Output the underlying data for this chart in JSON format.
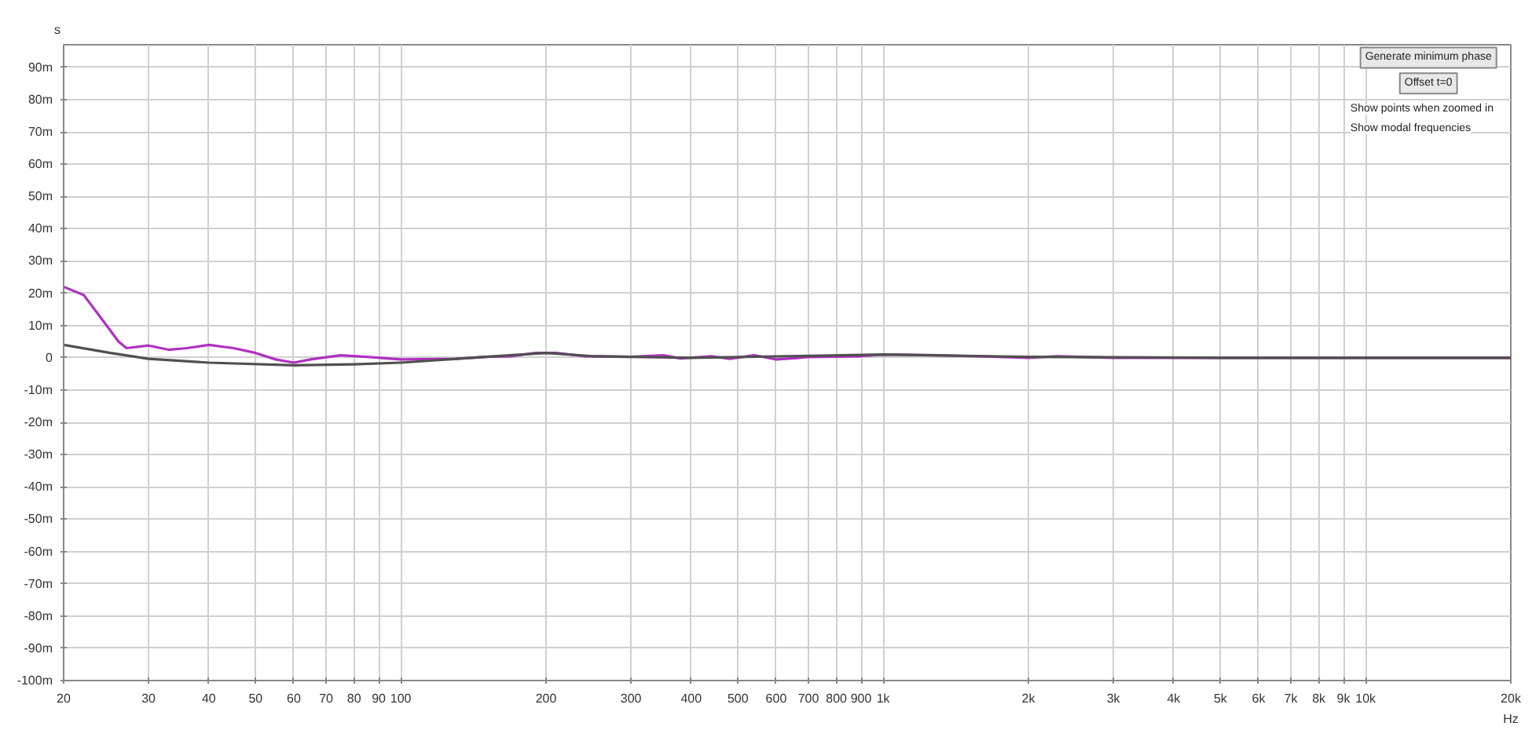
{
  "chart_data": {
    "type": "line",
    "ylabel": "s",
    "log": "x",
    "grid": true,
    "marker": "none",
    "line_style": "solid",
    "xlim": [
      20,
      20000
    ],
    "ylim": [
      -100,
      97
    ],
    "xticks": [
      20,
      30,
      40,
      50,
      60,
      70,
      80,
      90,
      100,
      200,
      300,
      400,
      500,
      600,
      700,
      800,
      900,
      {
        "value": 1000,
        "label": "1k"
      },
      {
        "value": 2000,
        "label": "2k"
      },
      {
        "value": 3000,
        "label": "3k"
      },
      {
        "value": 4000,
        "label": "4k"
      },
      {
        "value": 5000,
        "label": "5k"
      },
      {
        "value": 6000,
        "label": "6k"
      },
      {
        "value": 7000,
        "label": "7k"
      },
      {
        "value": 8000,
        "label": "8k"
      },
      {
        "value": 9000,
        "label": "9k"
      },
      {
        "value": 10000,
        "label": "10k"
      },
      {
        "value": 20000,
        "label": "20k"
      }
    ],
    "xlabel": "Hz",
    "yticks": [
      {
        "value": -100,
        "label": "-100m"
      },
      {
        "value": -90,
        "label": "-90m"
      },
      {
        "value": -80,
        "label": "-80m"
      },
      {
        "value": -70,
        "label": "-70m"
      },
      {
        "value": -60,
        "label": "-60m"
      },
      {
        "value": -50,
        "label": "-50m"
      },
      {
        "value": -40,
        "label": "-40m"
      },
      {
        "value": -30,
        "label": "-30m"
      },
      {
        "value": -20,
        "label": "-20m"
      },
      {
        "value": -10,
        "label": "-10m"
      },
      0,
      {
        "value": 10,
        "label": "10m"
      },
      {
        "value": 20,
        "label": "20m"
      },
      {
        "value": 30,
        "label": "30m"
      },
      {
        "value": 40,
        "label": "40m"
      },
      {
        "value": 50,
        "label": "50m"
      },
      {
        "value": 60,
        "label": "60m"
      },
      {
        "value": 70,
        "label": "70m"
      },
      {
        "value": 80,
        "label": "80m"
      },
      {
        "value": 90,
        "label": "90m"
      }
    ],
    "series": [
      {
        "color": "#b030c0",
        "x": [
          20,
          22,
          24,
          26,
          27,
          30,
          33,
          36,
          40,
          45,
          50,
          55,
          60,
          65,
          75,
          85,
          100,
          130,
          150,
          170,
          190,
          210,
          240,
          300,
          350,
          380,
          440,
          480,
          540,
          600,
          700,
          900,
          1000,
          1300,
          2000,
          2300,
          3000,
          20000
        ],
        "values": [
          22,
          19.5,
          12,
          5,
          3,
          3.8,
          2.5,
          3,
          4,
          3,
          1.5,
          -0.5,
          -1.5,
          -0.5,
          0.8,
          0.3,
          -0.5,
          -0.3,
          0.3,
          0.5,
          1.5,
          1.5,
          0.5,
          0.3,
          0.8,
          -0.2,
          0.5,
          -0.3,
          0.8,
          -0.5,
          0.2,
          0.5,
          1,
          0.8,
          0,
          0.5,
          0,
          0
        ]
      },
      {
        "color": "#505050",
        "x": [
          20,
          25,
          30,
          40,
          60,
          80,
          100,
          150,
          200,
          250,
          400,
          1000,
          2000,
          5000,
          20000
        ],
        "values": [
          4,
          1.5,
          -0.3,
          -1.5,
          -2.3,
          -2,
          -1.5,
          0.3,
          1.5,
          0.5,
          0,
          1,
          0.3,
          0,
          0
        ]
      }
    ],
    "annotations": [
      "Generate minimum phase",
      "Offset t=0",
      "Show points when zoomed in",
      "Show modal frequencies"
    ]
  }
}
